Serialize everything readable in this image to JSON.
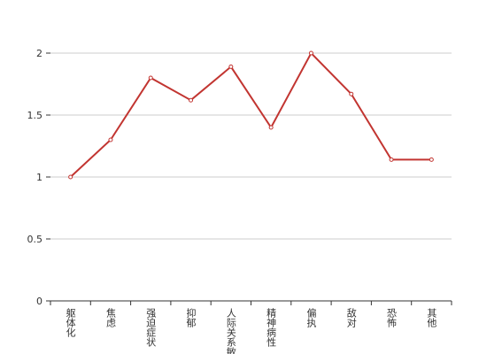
{
  "chart_data": {
    "type": "line",
    "categories": [
      "躯体化",
      "焦虑",
      "强迫症状",
      "抑郁",
      "人际关系敏感",
      "精神病性",
      "偏执",
      "敌对",
      "恐怖",
      "其他"
    ],
    "values": [
      1.0,
      1.3,
      1.8,
      1.62,
      1.89,
      1.4,
      2.0,
      1.67,
      1.14,
      1.14
    ],
    "color": "#c23531",
    "ylim": [
      0,
      2
    ],
    "yticks": [
      0,
      0.5,
      1,
      1.5,
      2
    ],
    "grid": true
  }
}
